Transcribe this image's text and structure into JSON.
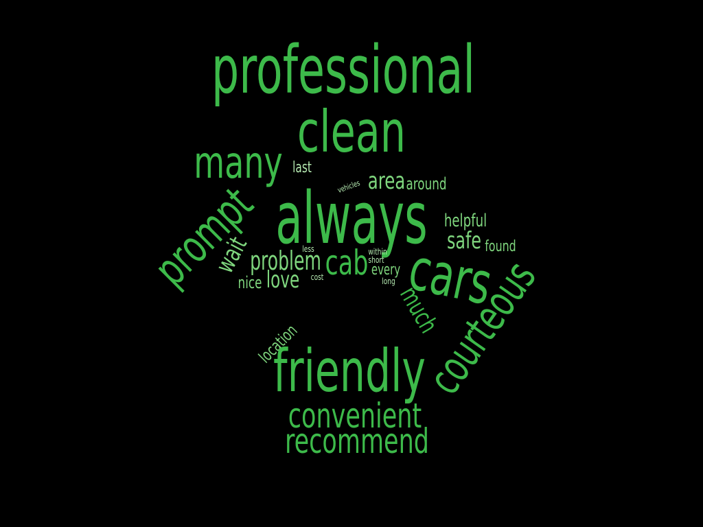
{
  "colors": {
    "background": "#000000",
    "primary": "#3dba4a",
    "secondary": "#7fd67e",
    "tertiary": "#b4e8b0"
  },
  "words": {
    "professional": "professional",
    "clean": "clean",
    "many": "many",
    "last": "last",
    "always": "always",
    "vehicles": "vehicles",
    "area": "area",
    "around": "around",
    "helpful": "helpful",
    "safe": "safe",
    "found": "found",
    "prompt": "prompt",
    "wait": "wait",
    "less": "less",
    "problem": "problem",
    "cab": "cab",
    "within": "within",
    "short": "short",
    "every": "every",
    "long": "long",
    "cars": "cars",
    "nice": "nice",
    "love": "love",
    "cost": "cost",
    "much": "much",
    "courteous": "courteous",
    "location": "location",
    "friendly": "friendly",
    "convenient": "convenient",
    "recommend": "recommend"
  }
}
